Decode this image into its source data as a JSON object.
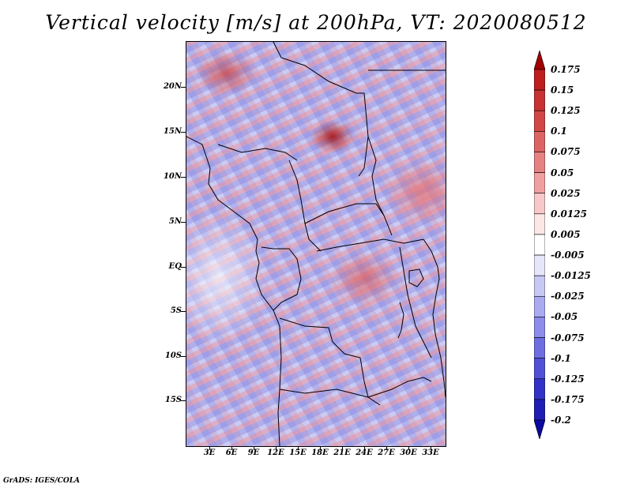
{
  "title": "Vertical velocity [m/s] at 200hPa, VT: 2020080512",
  "footer": "GrADS: IGES/COLA",
  "map": {
    "lat_labels": [
      "20N",
      "15N",
      "10N",
      "5N",
      "EQ",
      "5S",
      "10S",
      "15S"
    ],
    "lon_labels": [
      "3E",
      "6E",
      "9E",
      "12E",
      "15E",
      "18E",
      "21E",
      "24E",
      "27E",
      "30E",
      "33E"
    ],
    "field": "vertical velocity",
    "level": "200hPa"
  },
  "colorbar": {
    "labels": [
      "0.175",
      "0.15",
      "0.125",
      "0.1",
      "0.075",
      "0.05",
      "0.025",
      "0.0125",
      "0.005",
      "-0.005",
      "-0.0125",
      "-0.025",
      "-0.05",
      "-0.075",
      "-0.1",
      "-0.125",
      "-0.175",
      "-0.2"
    ],
    "colors": [
      "#a00000",
      "#be1e1e",
      "#c83232",
      "#d24646",
      "#dc6464",
      "#e68282",
      "#f0a0a0",
      "#f8c8c8",
      "#fce6e6",
      "#ffffff",
      "#e6e6fa",
      "#c8c8f5",
      "#aaaaf0",
      "#8c8ceb",
      "#6e6ee1",
      "#5050d7",
      "#3232c8",
      "#1e1eb4",
      "#0a0aa0"
    ]
  }
}
